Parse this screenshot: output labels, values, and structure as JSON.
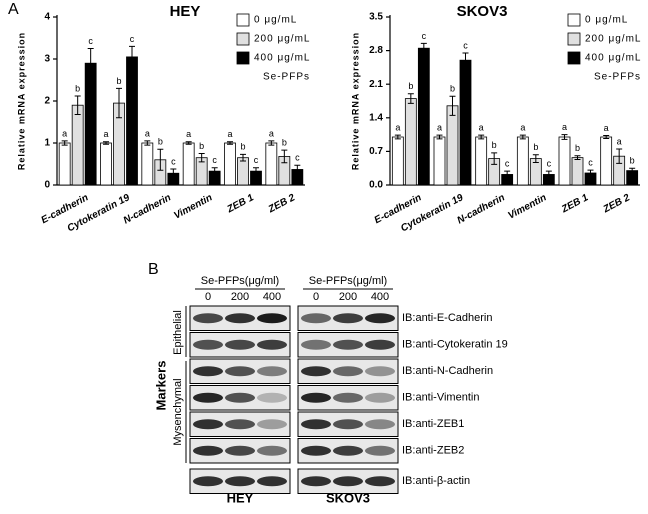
{
  "panels": {
    "a": "A",
    "b": "B"
  },
  "chart_data": [
    {
      "type": "bar",
      "title": "HEY",
      "y_label": "Relative mRNA expression",
      "legend_title": "Se-PFPs",
      "categories": [
        "E-cadherin",
        "Cytokeratin 19",
        "N-cadherin",
        "Vimentin",
        "ZEB 1",
        "ZEB 2"
      ],
      "ylim": [
        0,
        4
      ],
      "yticks": [
        0,
        1,
        2,
        3,
        4
      ],
      "series": [
        {
          "name": "0 μg/mL",
          "color": "#ffffff",
          "values": [
            1,
            1,
            1,
            1,
            1,
            1
          ],
          "errors": [
            0.05,
            0.03,
            0.05,
            0.03,
            0.03,
            0.05
          ],
          "letters": [
            "a",
            "a",
            "a",
            "a",
            "a",
            "a"
          ]
        },
        {
          "name": "200 μg/mL",
          "color": "#e0e0e0",
          "values": [
            1.9,
            1.95,
            0.6,
            0.65,
            0.65,
            0.68
          ],
          "errors": [
            0.22,
            0.35,
            0.25,
            0.1,
            0.08,
            0.15
          ],
          "letters": [
            "b",
            "b",
            "b",
            "b",
            "b",
            "b"
          ]
        },
        {
          "name": "400 μg/mL",
          "color": "#000000",
          "values": [
            2.9,
            3.05,
            0.28,
            0.33,
            0.33,
            0.37
          ],
          "errors": [
            0.35,
            0.25,
            0.1,
            0.08,
            0.08,
            0.1
          ],
          "letters": [
            "c",
            "c",
            "c",
            "c",
            "c",
            "c"
          ]
        }
      ]
    },
    {
      "type": "bar",
      "title": "SKOV3",
      "y_label": "Relative mRNA expression",
      "legend_title": "Se-PFPs",
      "categories": [
        "E-cadherin",
        "Cytokeratin 19",
        "N-cadherin",
        "Vimentin",
        "ZEB 1",
        "ZEB 2"
      ],
      "ylim": [
        0,
        3.5
      ],
      "yticks": [
        {
          "value": 0,
          "label": "0.0"
        },
        0.7,
        1.4,
        2.1,
        2.8,
        3.5
      ],
      "series": [
        {
          "name": "0 μg/mL",
          "color": "#ffffff",
          "values": [
            1,
            1,
            1,
            1,
            1,
            1
          ],
          "errors": [
            0.04,
            0.04,
            0.04,
            0.04,
            0.05,
            0.03
          ],
          "letters": [
            "a",
            "a",
            "a",
            "a",
            "a",
            "a"
          ]
        },
        {
          "name": "200 μg/mL",
          "color": "#e0e0e0",
          "values": [
            1.8,
            1.65,
            0.55,
            0.55,
            0.57,
            0.6
          ],
          "errors": [
            0.1,
            0.2,
            0.12,
            0.08,
            0.04,
            0.15
          ],
          "letters": [
            "b",
            "b",
            "b",
            "b",
            "b",
            "a"
          ]
        },
        {
          "name": "400 μg/mL",
          "color": "#000000",
          "values": [
            2.85,
            2.6,
            0.22,
            0.22,
            0.25,
            0.3
          ],
          "errors": [
            0.1,
            0.15,
            0.07,
            0.07,
            0.06,
            0.05
          ],
          "letters": [
            "c",
            "c",
            "c",
            "c",
            "c",
            "b"
          ]
        }
      ]
    }
  ],
  "blot": {
    "groups": [
      {
        "name": "HEY",
        "header": "Se-PFPs(μg/ml)",
        "doses": [
          "0",
          "200",
          "400"
        ]
      },
      {
        "name": "SKOV3",
        "header": "Se-PFPs(μg/ml)",
        "doses": [
          "0",
          "200",
          "400"
        ]
      }
    ],
    "rows": [
      "IB:anti-E-Cadherin",
      "IB:anti-Cytokeratin 19",
      "IB:anti-N-Cadherin",
      "IB:anti-Vimentin",
      "IB:anti-ZEB1",
      "IB:anti-ZEB2",
      "IB:anti-β-actin"
    ],
    "side": {
      "title": "Markers",
      "epithelial": "Epithelial",
      "mesenchymal": "Mysenchymal"
    }
  }
}
